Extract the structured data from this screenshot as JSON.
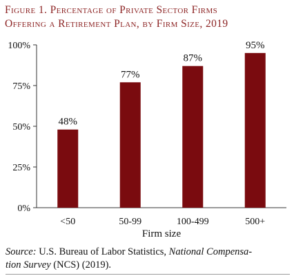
{
  "figure": {
    "title_line1": "Figure 1. Percentage of Private Sector Firms",
    "title_line2": "Offering a Retirement Plan, by Firm Size, 2019",
    "source_label": "Source:",
    "source_org": " U.S. Bureau of Labor Statistics, ",
    "source_title": "National Compensa-",
    "source_title2": "tion Survey",
    "source_rest": " (NCS) (2019)."
  },
  "colors": {
    "title": "#8c2323",
    "bar": "#7a0b0f",
    "axis": "#333333"
  },
  "chart_data": {
    "type": "bar",
    "categories": [
      "<50",
      "50-99",
      "100-499",
      "500+"
    ],
    "values": [
      48,
      77,
      87,
      95
    ],
    "data_labels": [
      "48%",
      "77%",
      "87%",
      "95%"
    ],
    "xlabel": "Firm size",
    "ylabel": "",
    "ylim": [
      0,
      100
    ],
    "yticks": [
      0,
      25,
      50,
      75,
      100
    ],
    "ytick_labels": [
      "0%",
      "25%",
      "50%",
      "75%",
      "100%"
    ],
    "grid": false,
    "legend": "none"
  }
}
